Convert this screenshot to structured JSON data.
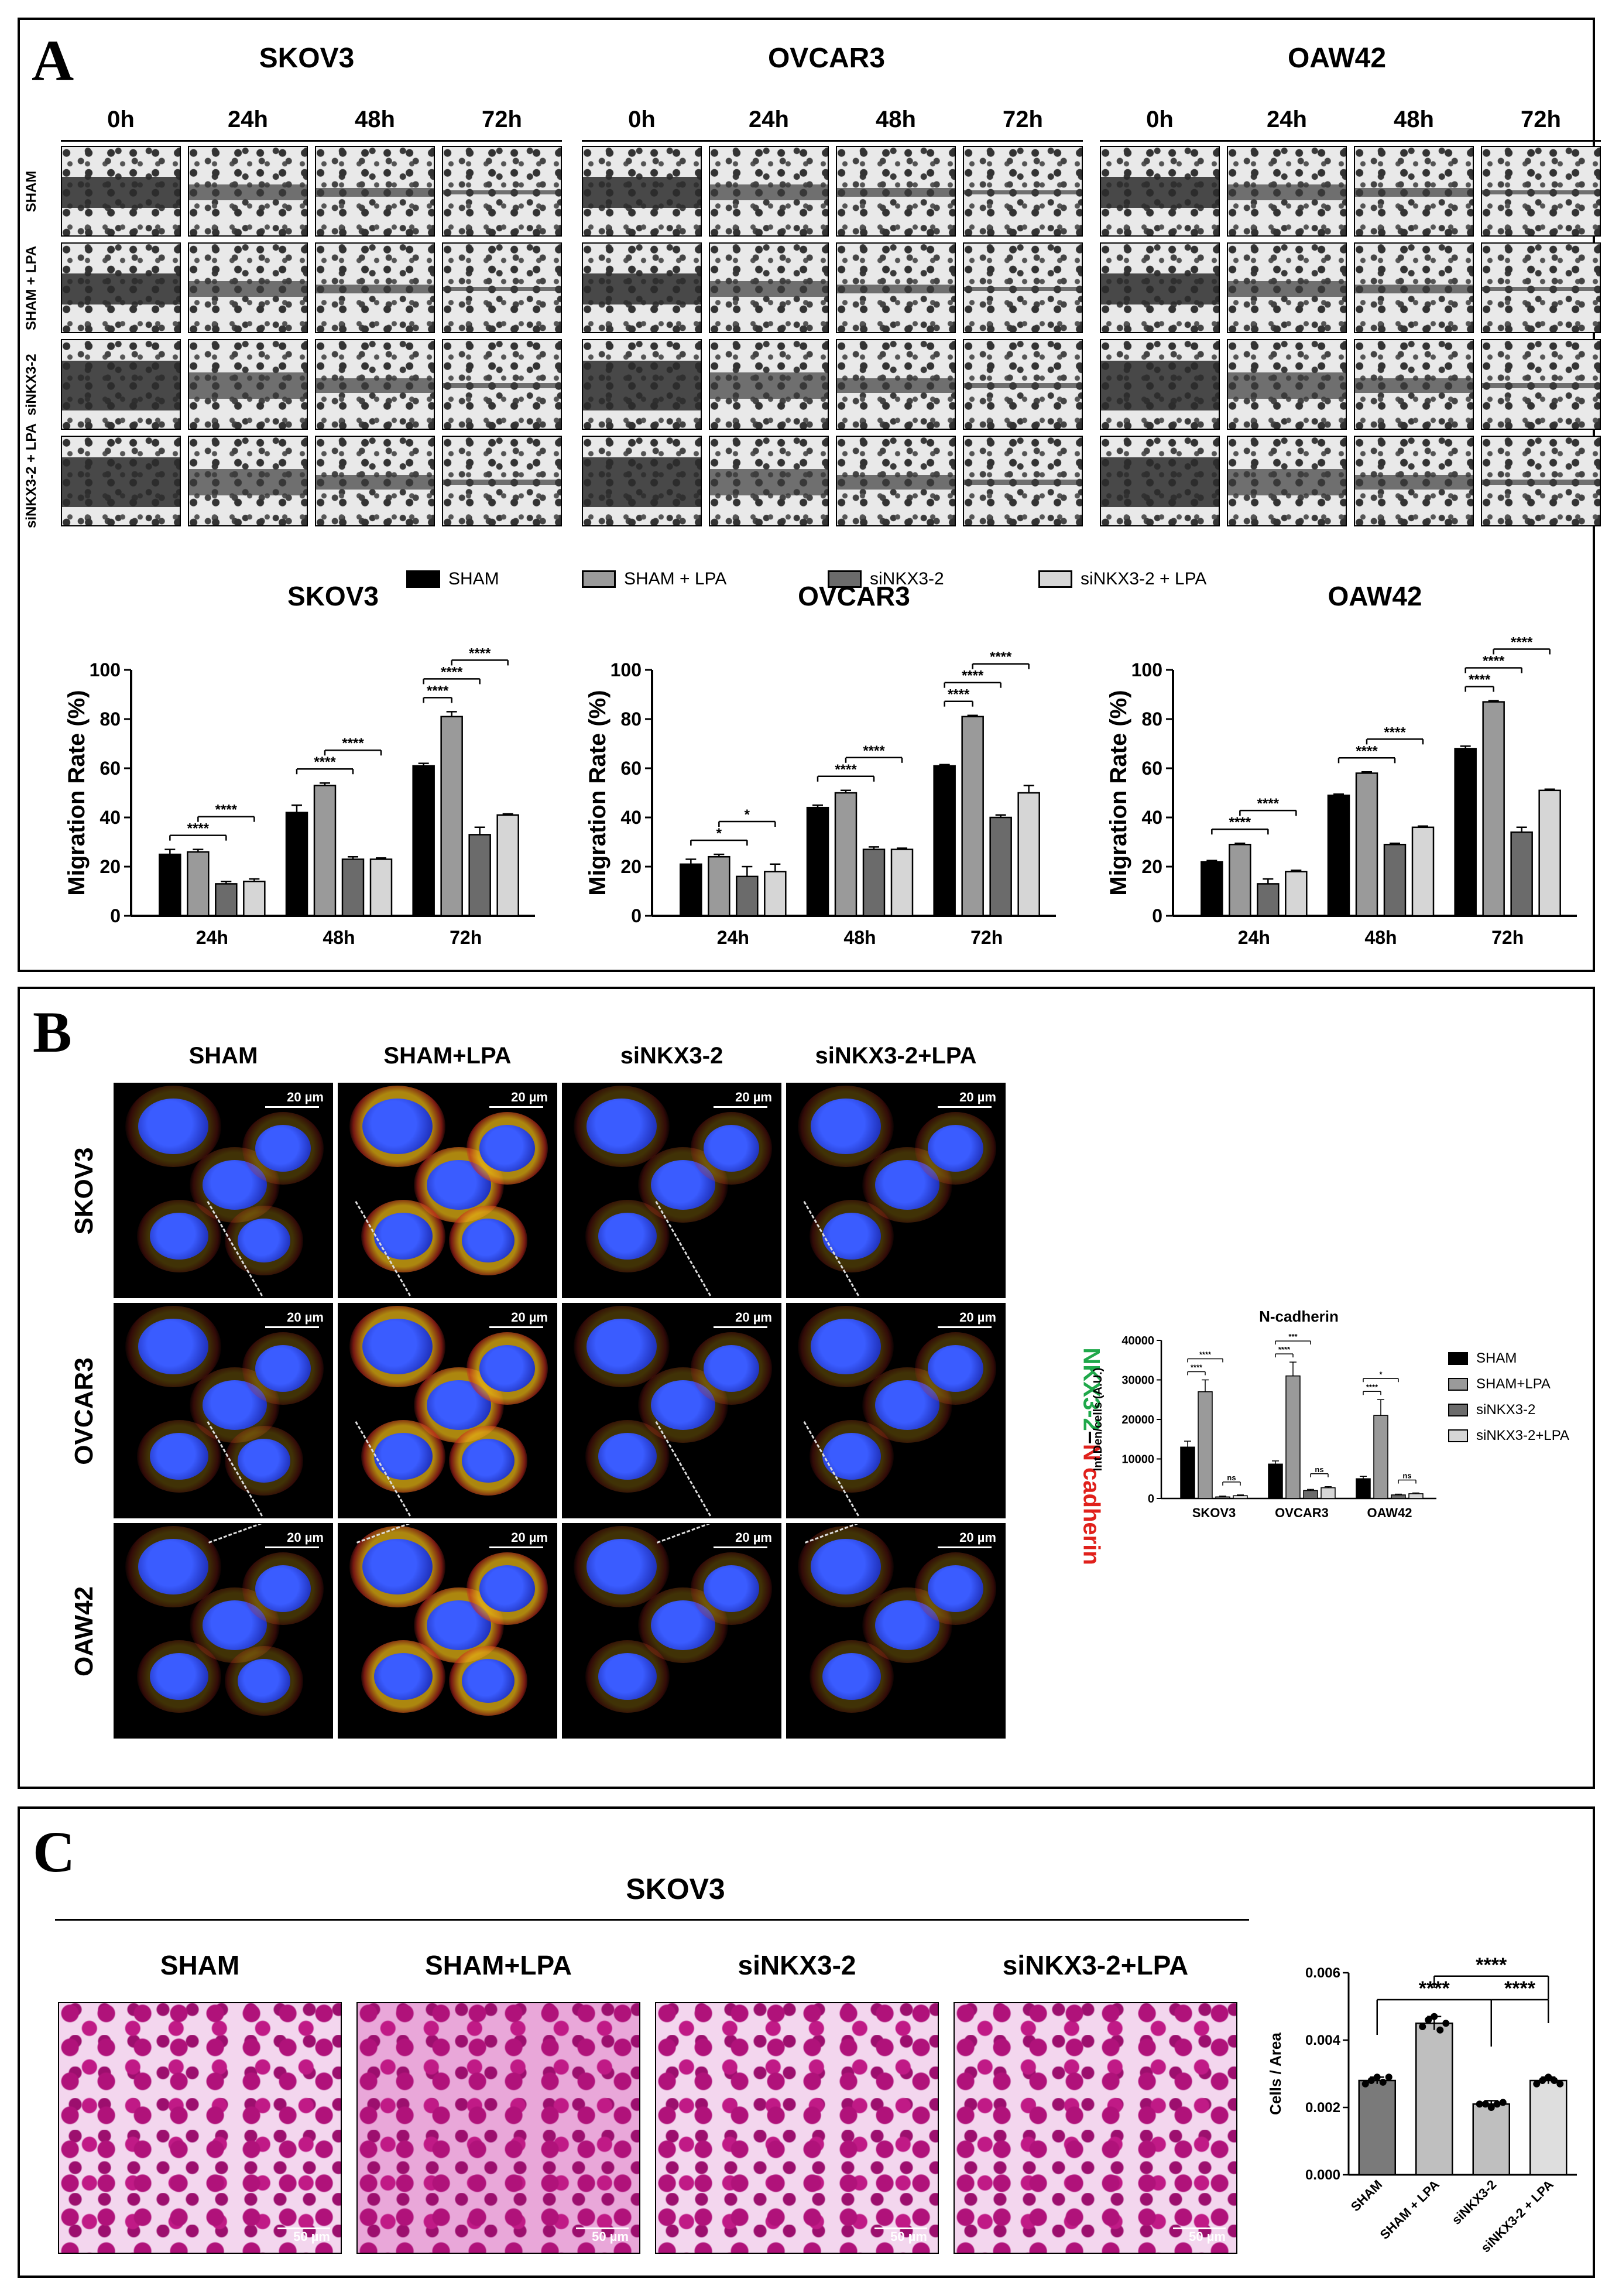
{
  "panelA": {
    "letter": "A",
    "groups": [
      {
        "name": "SKOV3"
      },
      {
        "name": "OVCAR3"
      },
      {
        "name": "OAW42"
      }
    ],
    "timepoints": [
      "0h",
      "24h",
      "48h",
      "72h"
    ],
    "row_labels": [
      "SHAM",
      "SHAM + LPA",
      "siNKX3-2",
      "siNKX3-2 + LPA"
    ],
    "legend": [
      "SHAM",
      "SHAM + LPA",
      "siNKX3-2",
      "siNKX3-2 + LPA"
    ]
  },
  "panelB": {
    "letter": "B",
    "columns": [
      "SHAM",
      "SHAM+LPA",
      "siNKX3-2",
      "siNKX3-2+LPA"
    ],
    "rows": [
      "SKOV3",
      "OVCAR3",
      "OAW42"
    ],
    "scale": "20 µm",
    "stain_label_green": "NKX3-2",
    "stain_label_sep": "–",
    "stain_label_red": "N cadherin",
    "legend": [
      "SHAM",
      "SHAM+LPA",
      "siNKX3-2",
      "siNKX3-2+LPA"
    ]
  },
  "panelC": {
    "letter": "C",
    "title": "SKOV3",
    "columns": [
      "SHAM",
      "SHAM+LPA",
      "siNKX3-2",
      "siNKX3-2+LPA"
    ],
    "scale": "50 µm"
  },
  "colors": {
    "sham": "#000000",
    "sham_lpa": "#9a9a9a",
    "sinkx": "#6b6b6b",
    "sinkx_lpa": "#d6d6d6",
    "green_text": "#1fa84a",
    "red_text": "#e0201b"
  },
  "chart_data": [
    {
      "type": "bar",
      "title": "SKOV3",
      "ylabel": "Migration Rate (%)",
      "categories": [
        "24h",
        "48h",
        "72h"
      ],
      "ylim": [
        0,
        100
      ],
      "yticks": [
        0,
        20,
        40,
        60,
        80,
        100
      ],
      "series": [
        {
          "name": "SHAM",
          "values": [
            25,
            42,
            61
          ],
          "errors": [
            2,
            3,
            1
          ]
        },
        {
          "name": "SHAM + LPA",
          "values": [
            26,
            53,
            81
          ],
          "errors": [
            1,
            1,
            2
          ]
        },
        {
          "name": "siNKX3-2",
          "values": [
            13,
            23,
            33
          ],
          "errors": [
            1,
            1,
            3
          ]
        },
        {
          "name": "siNKX3-2 + LPA",
          "values": [
            14,
            23,
            41
          ],
          "errors": [
            1,
            0.5,
            0.5
          ]
        }
      ],
      "significance": [
        {
          "category": 0,
          "from": 0,
          "to": 2,
          "label": "****"
        },
        {
          "category": 0,
          "from": 1,
          "to": 3,
          "label": "****"
        },
        {
          "category": 1,
          "from": 0,
          "to": 2,
          "label": "****"
        },
        {
          "category": 1,
          "from": 1,
          "to": 3,
          "label": "****"
        },
        {
          "category": 2,
          "from": 0,
          "to": 1,
          "label": "****"
        },
        {
          "category": 2,
          "from": 0,
          "to": 2,
          "label": "****"
        },
        {
          "category": 2,
          "from": 1,
          "to": 3,
          "label": "****"
        }
      ]
    },
    {
      "type": "bar",
      "title": "OVCAR3",
      "ylabel": "Migration Rate (%)",
      "categories": [
        "24h",
        "48h",
        "72h"
      ],
      "ylim": [
        0,
        100
      ],
      "yticks": [
        0,
        20,
        40,
        60,
        80,
        100
      ],
      "series": [
        {
          "name": "SHAM",
          "values": [
            21,
            44,
            61
          ],
          "errors": [
            2,
            1,
            0.5
          ]
        },
        {
          "name": "SHAM + LPA",
          "values": [
            24,
            50,
            81
          ],
          "errors": [
            1,
            1,
            0.5
          ]
        },
        {
          "name": "siNKX3-2",
          "values": [
            16,
            27,
            40
          ],
          "errors": [
            4,
            1,
            1
          ]
        },
        {
          "name": "siNKX3-2 + LPA",
          "values": [
            18,
            27,
            50
          ],
          "errors": [
            3,
            0.5,
            3
          ]
        }
      ],
      "significance": [
        {
          "category": 0,
          "from": 0,
          "to": 2,
          "label": "*"
        },
        {
          "category": 0,
          "from": 1,
          "to": 3,
          "label": "*"
        },
        {
          "category": 1,
          "from": 0,
          "to": 2,
          "label": "****"
        },
        {
          "category": 1,
          "from": 1,
          "to": 3,
          "label": "****"
        },
        {
          "category": 2,
          "from": 0,
          "to": 1,
          "label": "****"
        },
        {
          "category": 2,
          "from": 0,
          "to": 2,
          "label": "****"
        },
        {
          "category": 2,
          "from": 1,
          "to": 3,
          "label": "****"
        }
      ]
    },
    {
      "type": "bar",
      "title": "OAW42",
      "ylabel": "Migration Rate (%)",
      "categories": [
        "24h",
        "48h",
        "72h"
      ],
      "ylim": [
        0,
        100
      ],
      "yticks": [
        0,
        20,
        40,
        60,
        80,
        100
      ],
      "series": [
        {
          "name": "SHAM",
          "values": [
            22,
            49,
            68
          ],
          "errors": [
            0.5,
            0.5,
            1
          ]
        },
        {
          "name": "SHAM + LPA",
          "values": [
            29,
            58,
            87
          ],
          "errors": [
            0.5,
            0.5,
            0.5
          ]
        },
        {
          "name": "siNKX3-2",
          "values": [
            13,
            29,
            34
          ],
          "errors": [
            2,
            0.5,
            2
          ]
        },
        {
          "name": "siNKX3-2 + LPA",
          "values": [
            18,
            36,
            51
          ],
          "errors": [
            0.5,
            0.5,
            0.5
          ]
        }
      ],
      "significance": [
        {
          "category": 0,
          "from": 0,
          "to": 2,
          "label": "****"
        },
        {
          "category": 0,
          "from": 1,
          "to": 3,
          "label": "****"
        },
        {
          "category": 1,
          "from": 0,
          "to": 2,
          "label": "****"
        },
        {
          "category": 1,
          "from": 1,
          "to": 3,
          "label": "****"
        },
        {
          "category": 2,
          "from": 0,
          "to": 1,
          "label": "****"
        },
        {
          "category": 2,
          "from": 0,
          "to": 2,
          "label": "****"
        },
        {
          "category": 2,
          "from": 1,
          "to": 3,
          "label": "****"
        }
      ]
    },
    {
      "type": "bar",
      "title": "N-cadherin",
      "ylabel": "Int.Den/cells (A.U.)",
      "categories": [
        "SKOV3",
        "OVCAR3",
        "OAW42"
      ],
      "ylim": [
        0,
        40000
      ],
      "yticks": [
        0,
        10000,
        20000,
        30000,
        40000
      ],
      "legend_position": "right",
      "series": [
        {
          "name": "SHAM",
          "values": [
            13000,
            8700,
            5000
          ],
          "errors": [
            1500,
            800,
            600
          ]
        },
        {
          "name": "SHAM+LPA",
          "values": [
            27000,
            31000,
            21000
          ],
          "errors": [
            3000,
            3500,
            4000
          ]
        },
        {
          "name": "siNKX3-2",
          "values": [
            400,
            2000,
            900
          ],
          "errors": [
            200,
            300,
            200
          ]
        },
        {
          "name": "siNKX3-2+LPA",
          "values": [
            700,
            2700,
            1200
          ],
          "errors": [
            200,
            300,
            200
          ]
        }
      ],
      "significance": [
        {
          "category": 0,
          "from": 0,
          "to": 1,
          "label": "****"
        },
        {
          "category": 0,
          "from": 0,
          "to": 2,
          "label": "****"
        },
        {
          "category": 0,
          "from": 2,
          "to": 3,
          "label": "ns"
        },
        {
          "category": 1,
          "from": 0,
          "to": 1,
          "label": "****"
        },
        {
          "category": 1,
          "from": 0,
          "to": 2,
          "label": "***"
        },
        {
          "category": 1,
          "from": 2,
          "to": 3,
          "label": "ns"
        },
        {
          "category": 2,
          "from": 0,
          "to": 1,
          "label": "****"
        },
        {
          "category": 2,
          "from": 0,
          "to": 2,
          "label": "*"
        },
        {
          "category": 2,
          "from": 2,
          "to": 3,
          "label": "ns"
        }
      ]
    },
    {
      "type": "bar",
      "ylabel": "Cells / Area",
      "categories": [
        "SHAM",
        "SHAM + LPA",
        "siNKX3-2",
        "siNKX3-2 + LPA"
      ],
      "ylim": [
        0,
        0.006
      ],
      "yticks": [
        "0.000",
        "0.002",
        "0.004",
        "0.006"
      ],
      "values": [
        0.0028,
        0.0045,
        0.0021,
        0.0028
      ],
      "errors": [
        0.0001,
        0.0002,
        0.0001,
        0.0001
      ],
      "points": [
        [
          0.0027,
          0.0028,
          0.0029,
          0.00275,
          0.0029
        ],
        [
          0.0044,
          0.0046,
          0.0047,
          0.0043,
          0.0045
        ],
        [
          0.0021,
          0.0021,
          0.002,
          0.0021,
          0.00215
        ],
        [
          0.0027,
          0.0028,
          0.0029,
          0.0028,
          0.0027
        ]
      ],
      "significance": [
        {
          "from": 0,
          "to": 2,
          "label": "****"
        },
        {
          "from": 1,
          "to": 3,
          "label": "****"
        },
        {
          "from": 2,
          "to": 3,
          "label": "****"
        }
      ]
    }
  ]
}
